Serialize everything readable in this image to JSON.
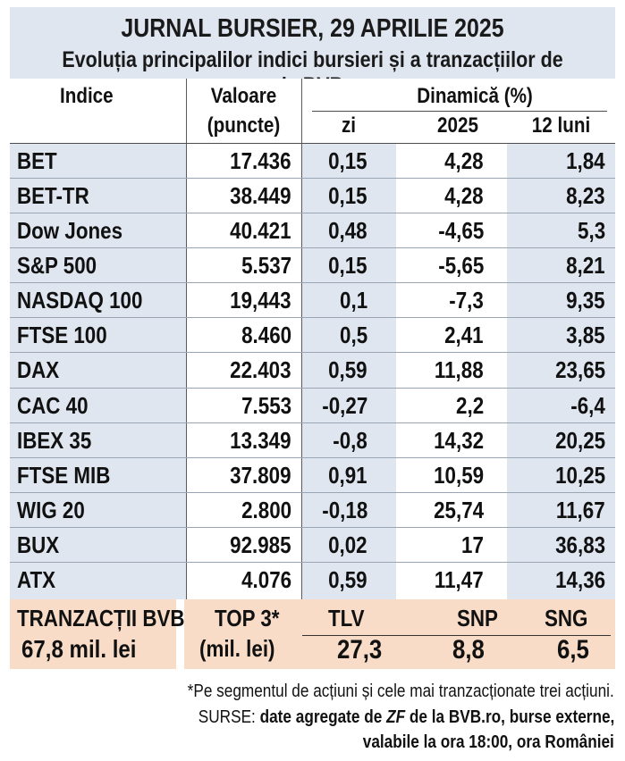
{
  "title": {
    "line1": "JURNAL BURSIER, 29 APRILIE 2025",
    "line2": "Evoluția principalilor indici bursieri și a tranzacțiilor de la BVB"
  },
  "headers": {
    "index": "Indice",
    "value_line1": "Valoare",
    "value_line2": "(puncte)",
    "dynamics": "Dinamică (%)",
    "day": "zi",
    "ytd": "2025",
    "months12": "12 luni"
  },
  "rows": [
    {
      "name": "BET",
      "value": "17.436",
      "day": "0,15",
      "ytd": "4,28",
      "m12": "1,84"
    },
    {
      "name": "BET-TR",
      "value": "38.449",
      "day": "0,15",
      "ytd": "4,28",
      "m12": "8,23"
    },
    {
      "name": "Dow Jones",
      "value": "40.421",
      "day": "0,48",
      "ytd": "-4,65",
      "m12": "5,3"
    },
    {
      "name": "S&P 500",
      "value": "5.537",
      "day": "0,15",
      "ytd": "-5,65",
      "m12": "8,21"
    },
    {
      "name": "NASDAQ 100",
      "value": "19,443",
      "day": "0,1",
      "ytd": "-7,3",
      "m12": "9,35"
    },
    {
      "name": "FTSE 100",
      "value": "8.460",
      "day": "0,5",
      "ytd": "2,41",
      "m12": "3,85"
    },
    {
      "name": "DAX",
      "value": "22.403",
      "day": "0,59",
      "ytd": "11,88",
      "m12": "23,65"
    },
    {
      "name": "CAC 40",
      "value": "7.553",
      "day": "-0,27",
      "ytd": "2,2",
      "m12": "-6,4"
    },
    {
      "name": "IBEX 35",
      "value": "13.349",
      "day": "-0,8",
      "ytd": "14,32",
      "m12": "20,25"
    },
    {
      "name": "FTSE MIB",
      "value": "37.809",
      "day": "0,91",
      "ytd": "10,59",
      "m12": "10,25"
    },
    {
      "name": "WIG 20",
      "value": "2.800",
      "day": "-0,18",
      "ytd": "25,74",
      "m12": "11,67"
    },
    {
      "name": "BUX",
      "value": "92.985",
      "day": "0,02",
      "ytd": "17",
      "m12": "36,83"
    },
    {
      "name": "ATX",
      "value": "4.076",
      "day": "0,59",
      "ytd": "11,47",
      "m12": "14,36"
    }
  ],
  "bvb": {
    "label": "TRANZACȚII BVB",
    "amount": "67,8 mil. lei",
    "top_label": "TOP 3*",
    "top_unit": "(mil. lei)",
    "symbols": [
      "TLV",
      "SNP",
      "SNG"
    ],
    "values": [
      "27,3",
      "8,8",
      "6,5"
    ]
  },
  "footer": {
    "note": "*Pe segmentul de acțiuni și cele mai tranzacționate trei acțiuni.",
    "sources_prefix": "SURSE: ",
    "sources_part1": "date agregate de ",
    "sources_zf": "ZF",
    "sources_part2": " de la BVB.ro, burse externe,",
    "sources_line2": "valabile la ora 18:00, ora României"
  },
  "colors": {
    "title_bg": "#dfe6f0",
    "band_bg": "#dfe6f0",
    "bvb_bg": "#f8dcc7"
  }
}
